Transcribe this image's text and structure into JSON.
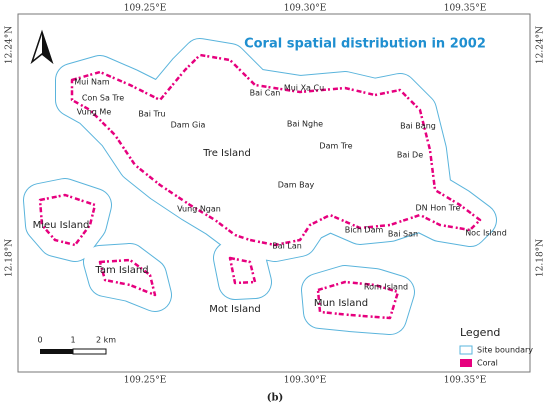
{
  "map": {
    "title": "Coral spatial distribution in 2002",
    "lon_ticks": [
      "109.25°E",
      "109.30°E",
      "109.35°E"
    ],
    "lat_ticks": [
      "12.24°N",
      "12.18°N"
    ],
    "labels": [
      "Mui Nam",
      "Con Sa Tre",
      "Vung Me",
      "Bai Tru",
      "Dam Gia",
      "Bai Can",
      "Mui Xa Cu",
      "Bai Nghe",
      "Dam Tre",
      "Bai Bang",
      "Bai De",
      "Tre Island",
      "Dam Bay",
      "DN Hon Tre",
      "Vung Ngan",
      "Bich Dam",
      "Bai San",
      "Noc Island",
      "Bai Lan",
      "Mieu Island",
      "Tam Island",
      "Mot Island",
      "Mun Island",
      "Rom Island"
    ],
    "scale_bar": [
      "0",
      "1",
      "2 km"
    ],
    "legend": {
      "title": "Legend",
      "items": [
        "Site boundary",
        "Coral"
      ]
    }
  },
  "caption": "(b)"
}
